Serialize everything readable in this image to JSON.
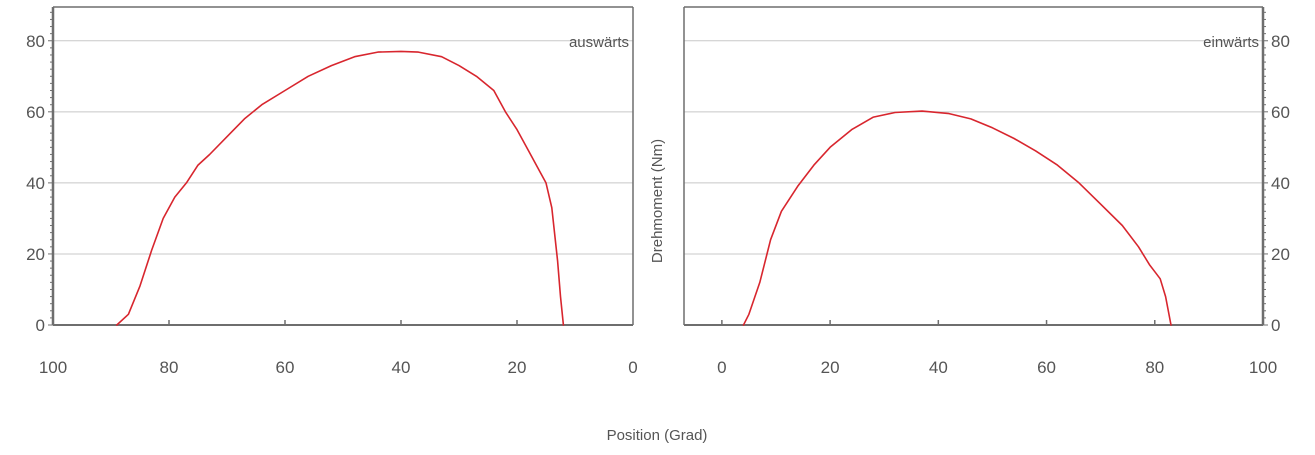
{
  "chart_data": [
    {
      "type": "line",
      "annotation": "auswärts",
      "x_axis": {
        "range": [
          100,
          0
        ],
        "ticks": [
          100,
          80,
          60,
          40,
          20,
          0
        ],
        "reversed": true
      },
      "y_axis": {
        "range": [
          0,
          80
        ],
        "ticks": [
          0,
          20,
          40,
          60,
          80
        ],
        "side": "left"
      },
      "grid": true,
      "line_color": "#d8262e",
      "series": [
        {
          "x": [
            89,
            87,
            85,
            83,
            81,
            79,
            77,
            75,
            73,
            70,
            67,
            64,
            60,
            56,
            52,
            48,
            44,
            40,
            37,
            33,
            30,
            27,
            24,
            22,
            20,
            18,
            16,
            15,
            14,
            13,
            12.5,
            12
          ],
          "y": [
            0,
            3,
            11,
            21,
            30,
            36,
            40,
            45,
            48,
            53,
            58,
            62,
            66,
            70,
            73,
            75.5,
            76.8,
            77,
            76.8,
            75.5,
            73,
            70,
            66,
            60,
            55,
            49,
            43,
            40,
            33,
            18,
            8,
            0
          ]
        }
      ]
    },
    {
      "type": "line",
      "annotation": "einwärts",
      "x_axis": {
        "range": [
          -7,
          100
        ],
        "ticks": [
          0,
          20,
          40,
          60,
          80,
          100
        ]
      },
      "y_axis": {
        "range": [
          0,
          80
        ],
        "ticks": [
          0,
          20,
          40,
          60,
          80
        ],
        "side": "right",
        "label": "Drehmoment (Nm)"
      },
      "grid": true,
      "line_color": "#d8262e",
      "series": [
        {
          "x": [
            4,
            5,
            7,
            9,
            11,
            14,
            17,
            20,
            24,
            28,
            32,
            37,
            42,
            46,
            50,
            54,
            58,
            62,
            66,
            70,
            74,
            77,
            79,
            80,
            81,
            82,
            83
          ],
          "y": [
            0,
            3,
            12,
            24,
            32,
            39,
            45,
            50,
            55,
            58.5,
            59.8,
            60.2,
            59.5,
            58,
            55.5,
            52.5,
            49,
            45,
            40,
            34,
            28,
            22,
            17,
            15,
            13,
            8,
            0
          ]
        }
      ]
    }
  ],
  "x_axis_title": "Position (Grad)"
}
